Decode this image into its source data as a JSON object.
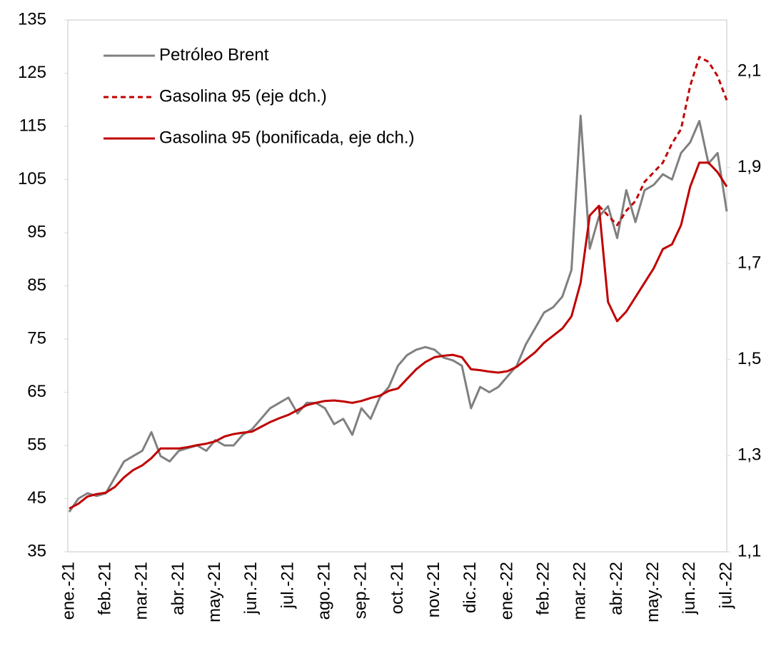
{
  "chart_data": {
    "type": "line",
    "categories": [
      "ene.-21",
      null,
      null,
      null,
      "feb.-21",
      null,
      null,
      null,
      "mar.-21",
      null,
      null,
      null,
      "abr.-21",
      null,
      null,
      null,
      "may.-21",
      null,
      null,
      null,
      "jun.-21",
      null,
      null,
      null,
      "jul.-21",
      null,
      null,
      null,
      "ago.-21",
      null,
      null,
      null,
      "sep.-21",
      null,
      null,
      null,
      "oct.-21",
      null,
      null,
      null,
      "nov.-21",
      null,
      null,
      null,
      "dic.-21",
      null,
      null,
      null,
      "ene.-22",
      null,
      null,
      null,
      "feb.-22",
      null,
      null,
      null,
      "mar.-22",
      null,
      null,
      null,
      "abr.-22",
      null,
      null,
      null,
      "may.-22",
      null,
      null,
      null,
      "jun.-22",
      null,
      null,
      null,
      "jul.-22"
    ],
    "series": [
      {
        "name": "Petróleo Brent",
        "color": "#808080",
        "dashed": false,
        "axis": "y",
        "values": [
          42.5,
          45,
          46,
          45.5,
          46,
          49,
          52,
          53,
          54,
          57.5,
          53,
          52,
          54,
          54.5,
          55,
          54,
          56,
          55,
          55,
          57,
          58,
          60,
          62,
          63,
          64,
          61,
          63,
          63,
          62,
          59,
          60,
          57,
          62,
          60,
          64,
          66,
          70,
          72,
          73,
          73.5,
          73,
          71.5,
          71,
          70,
          62,
          66,
          65,
          66,
          68,
          70,
          74,
          77,
          80,
          81,
          83,
          88,
          117,
          92,
          98,
          100,
          94,
          103,
          97,
          103,
          104,
          106,
          105,
          110,
          112,
          116,
          108,
          110,
          99
        ]
      },
      {
        "name": "Gasolina 95 (eje dch.)",
        "color": "#c00000",
        "dashed": true,
        "axis": "y2",
        "values": [
          null,
          null,
          null,
          null,
          null,
          null,
          null,
          null,
          null,
          null,
          null,
          null,
          null,
          null,
          null,
          null,
          null,
          null,
          null,
          null,
          null,
          null,
          null,
          null,
          null,
          null,
          null,
          null,
          null,
          null,
          null,
          null,
          null,
          null,
          null,
          null,
          null,
          null,
          null,
          null,
          null,
          null,
          null,
          null,
          null,
          null,
          null,
          null,
          null,
          null,
          null,
          null,
          null,
          null,
          null,
          null,
          null,
          null,
          1.82,
          1.8,
          1.78,
          1.81,
          1.83,
          1.87,
          1.89,
          1.91,
          1.95,
          1.98,
          2.07,
          2.13,
          2.12,
          2.09,
          2.04
        ]
      },
      {
        "name": "Gasolina 95 (bonificada, eje dch.)",
        "color": "#c00000",
        "dashed": false,
        "axis": "y2",
        "values": [
          1.19,
          1.2,
          1.215,
          1.22,
          1.223,
          1.235,
          1.255,
          1.27,
          1.28,
          1.295,
          1.315,
          1.315,
          1.315,
          1.318,
          1.322,
          1.325,
          1.33,
          1.34,
          1.345,
          1.348,
          1.35,
          1.36,
          1.37,
          1.378,
          1.385,
          1.395,
          1.405,
          1.41,
          1.414,
          1.415,
          1.413,
          1.41,
          1.414,
          1.42,
          1.425,
          1.435,
          1.44,
          1.46,
          1.48,
          1.495,
          1.505,
          1.508,
          1.51,
          1.505,
          1.48,
          1.478,
          1.475,
          1.473,
          1.476,
          1.485,
          1.5,
          1.515,
          1.535,
          1.55,
          1.565,
          1.59,
          1.66,
          1.8,
          1.82,
          1.62,
          1.58,
          1.6,
          1.63,
          1.66,
          1.69,
          1.73,
          1.74,
          1.78,
          1.86,
          1.91,
          1.91,
          1.89,
          1.86
        ]
      }
    ],
    "ylim": [
      35,
      135
    ],
    "yticks": [
      35,
      45,
      55,
      65,
      75,
      85,
      95,
      105,
      115,
      125,
      135
    ],
    "y2lim": [
      1.1,
      2.207
    ],
    "y2ticks": [
      {
        "value": 1.1,
        "label": "1,1"
      },
      {
        "value": 1.3,
        "label": "1,3"
      },
      {
        "value": 1.5,
        "label": "1,5"
      },
      {
        "value": 1.7,
        "label": "1,7"
      },
      {
        "value": 1.9,
        "label": "1,9"
      },
      {
        "value": 2.1,
        "label": "2,1"
      }
    ],
    "grid": false,
    "legend": "top-left"
  }
}
